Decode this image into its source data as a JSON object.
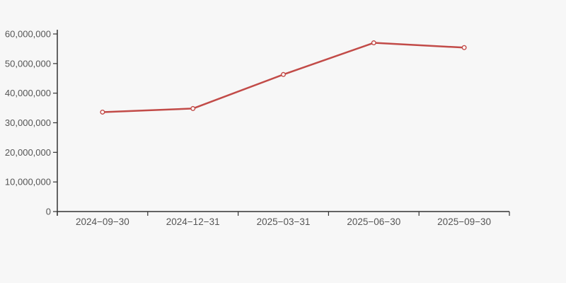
{
  "page": {
    "background_color": "#f7f7f7"
  },
  "chart_data": {
    "type": "line",
    "title": "",
    "xlabel": "",
    "ylabel": "",
    "categories": [
      "2024−09−30",
      "2024−12−31",
      "2025−03−31",
      "2025−06−30",
      "2025−09−30"
    ],
    "series": [
      {
        "name": "series-1",
        "color": "#c24b48",
        "marker": "open-circle",
        "marker_fill": "#ffffff",
        "values": [
          33600000,
          34800000,
          46300000,
          57000000,
          55400000
        ]
      }
    ],
    "ylim": [
      0,
      60000000
    ],
    "y_ticks": [
      0,
      10000000,
      20000000,
      30000000,
      40000000,
      50000000,
      60000000
    ],
    "y_tick_labels": [
      "0",
      "10,000,000",
      "20,000,000",
      "30,000,000",
      "40,000,000",
      "50,000,000",
      "60,000,000"
    ],
    "grid": false,
    "legend": "none",
    "axis_color": "#333333",
    "tick_label_color": "#555555"
  }
}
